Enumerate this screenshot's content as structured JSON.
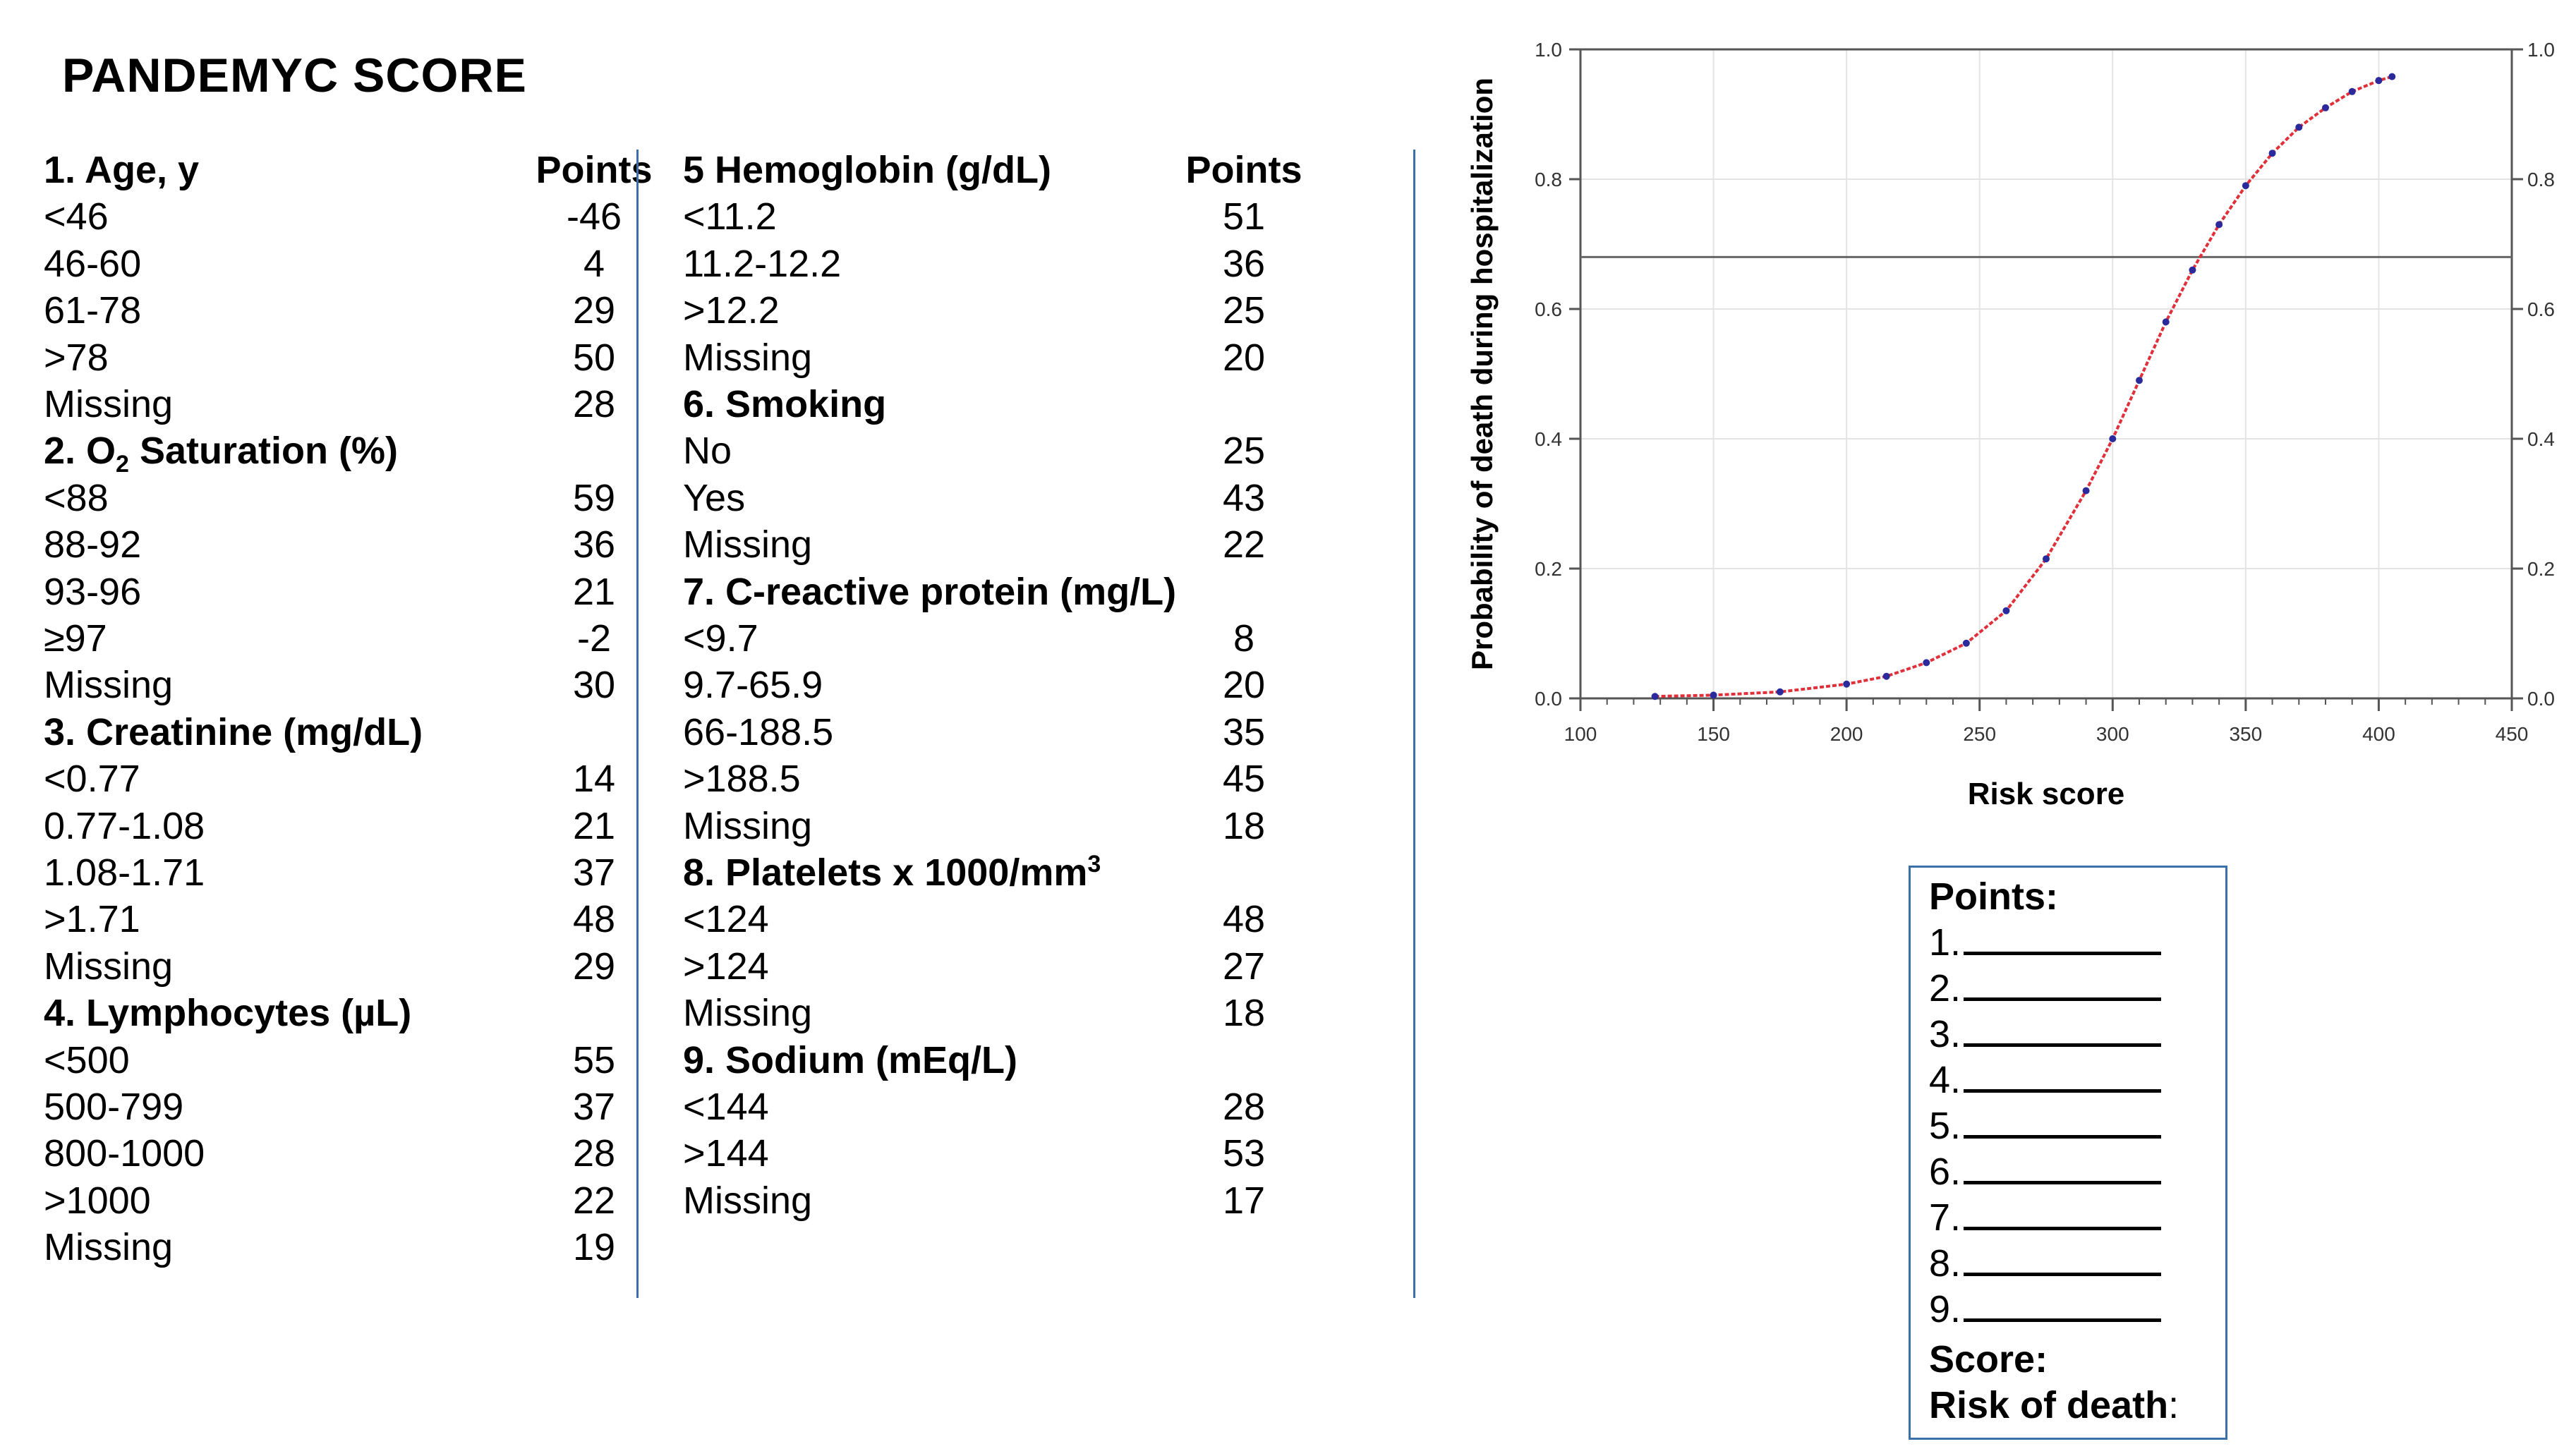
{
  "title": "PANDEMYC SCORE",
  "table": {
    "points_header": "Points",
    "left": [
      {
        "type": "header",
        "label": "1. Age, y",
        "points": "Points"
      },
      {
        "type": "row",
        "label": "<46",
        "points": "-46"
      },
      {
        "type": "row",
        "label": "46-60",
        "points": "4"
      },
      {
        "type": "row",
        "label": "61-78",
        "points": "29"
      },
      {
        "type": "row",
        "label": ">78",
        "points": "50"
      },
      {
        "type": "row",
        "label": "Missing",
        "points": "28"
      },
      {
        "type": "header",
        "label": "2. O",
        "sub": "2",
        "label_after": " Saturation (%)"
      },
      {
        "type": "row",
        "label": "<88",
        "points": "59"
      },
      {
        "type": "row",
        "label": "88-92",
        "points": "36"
      },
      {
        "type": "row",
        "label": "93-96",
        "points": "21"
      },
      {
        "type": "row",
        "label": "≥97",
        "points": "-2"
      },
      {
        "type": "row",
        "label": "Missing",
        "points": "30"
      },
      {
        "type": "header",
        "label": "3. Creatinine (mg/dL)"
      },
      {
        "type": "row",
        "label": "<0.77",
        "points": "14"
      },
      {
        "type": "row",
        "label": "0.77-1.08",
        "points": "21"
      },
      {
        "type": "row",
        "label": "1.08-1.71",
        "points": "37"
      },
      {
        "type": "row",
        "label": ">1.71",
        "points": "48"
      },
      {
        "type": "row",
        "label": "Missing",
        "points": "29"
      },
      {
        "type": "header",
        "label": "4. Lymphocytes (µL)"
      },
      {
        "type": "row",
        "label": "<500",
        "points": "55"
      },
      {
        "type": "row",
        "label": "500-799",
        "points": "37"
      },
      {
        "type": "row",
        "label": "800-1000",
        "points": "28"
      },
      {
        "type": "row",
        "label": ">1000",
        "points": "22"
      },
      {
        "type": "row",
        "label": "Missing",
        "points": "19"
      }
    ],
    "right": [
      {
        "type": "header",
        "label": "5 Hemoglobin (g/dL)",
        "points": "Points"
      },
      {
        "type": "row",
        "label": "<11.2",
        "points": "51"
      },
      {
        "type": "row",
        "label": "11.2-12.2",
        "points": "36"
      },
      {
        "type": "row",
        "label": ">12.2",
        "points": "25"
      },
      {
        "type": "row",
        "label": "Missing",
        "points": "20"
      },
      {
        "type": "header",
        "label": "6. Smoking"
      },
      {
        "type": "row",
        "label": "No",
        "points": "25"
      },
      {
        "type": "row",
        "label": "Yes",
        "points": "43"
      },
      {
        "type": "row",
        "label": "Missing",
        "points": "22"
      },
      {
        "type": "header",
        "label": "7. C-reactive protein (mg/L)"
      },
      {
        "type": "row",
        "label": "<9.7",
        "points": "8"
      },
      {
        "type": "row",
        "label": "9.7-65.9",
        "points": "20"
      },
      {
        "type": "row",
        "label": "66-188.5",
        "points": "35"
      },
      {
        "type": "row",
        "label": ">188.5",
        "points": "45"
      },
      {
        "type": "row",
        "label": "Missing",
        "points": "18"
      },
      {
        "type": "header",
        "label": "8. Platelets x 1000/mm",
        "sup": "3"
      },
      {
        "type": "row",
        "label": "<124",
        "points": "48"
      },
      {
        "type": "row",
        "label": " >124",
        "points": "27"
      },
      {
        "type": "row",
        "label": "Missing",
        "points": "18"
      },
      {
        "type": "header",
        "label": "9. Sodium (mEq/L)"
      },
      {
        "type": "row",
        "label": "<144",
        "points": "28"
      },
      {
        "type": "row",
        "label": ">144",
        "points": "53"
      },
      {
        "type": "row",
        "label": "Missing",
        "points": "17"
      }
    ]
  },
  "worksheet": {
    "title": "Points:",
    "items": [
      "1.",
      "2.",
      "3.",
      "4.",
      "5.",
      "6.",
      "7.",
      "8.",
      "9."
    ],
    "score_label": "Score:",
    "risk_label": "Risk of death",
    "risk_colon": ":"
  },
  "chart_data": {
    "type": "line",
    "xlabel": "Risk score",
    "ylabel": "Probability of death during hospitalization",
    "xlim": [
      100,
      450
    ],
    "ylim": [
      0,
      1
    ],
    "x_ticks": [
      "100",
      "150",
      "200",
      "250",
      "300",
      "350",
      "400",
      "450"
    ],
    "y_ticks": [
      "0.0",
      "0.2",
      "0.4",
      "0.6",
      "0.8",
      "1.0"
    ],
    "y_ticks_right": [
      "0.0",
      "0.2",
      "0.4",
      "0.6",
      "0.8",
      "1.0"
    ],
    "grid": true,
    "reference_line_y": 0.68,
    "curve_color": "#e0303a",
    "points_color": "#2a2a9c",
    "series": [
      {
        "x": [
          128,
          150,
          175,
          200,
          215,
          230,
          245,
          260,
          275,
          290,
          300,
          310,
          320,
          330,
          340,
          350,
          360,
          370,
          380,
          390,
          400,
          405
        ],
        "y": [
          0.003,
          0.005,
          0.01,
          0.022,
          0.034,
          0.055,
          0.085,
          0.135,
          0.215,
          0.32,
          0.4,
          0.49,
          0.58,
          0.66,
          0.73,
          0.79,
          0.84,
          0.88,
          0.91,
          0.935,
          0.952,
          0.958
        ]
      }
    ]
  }
}
